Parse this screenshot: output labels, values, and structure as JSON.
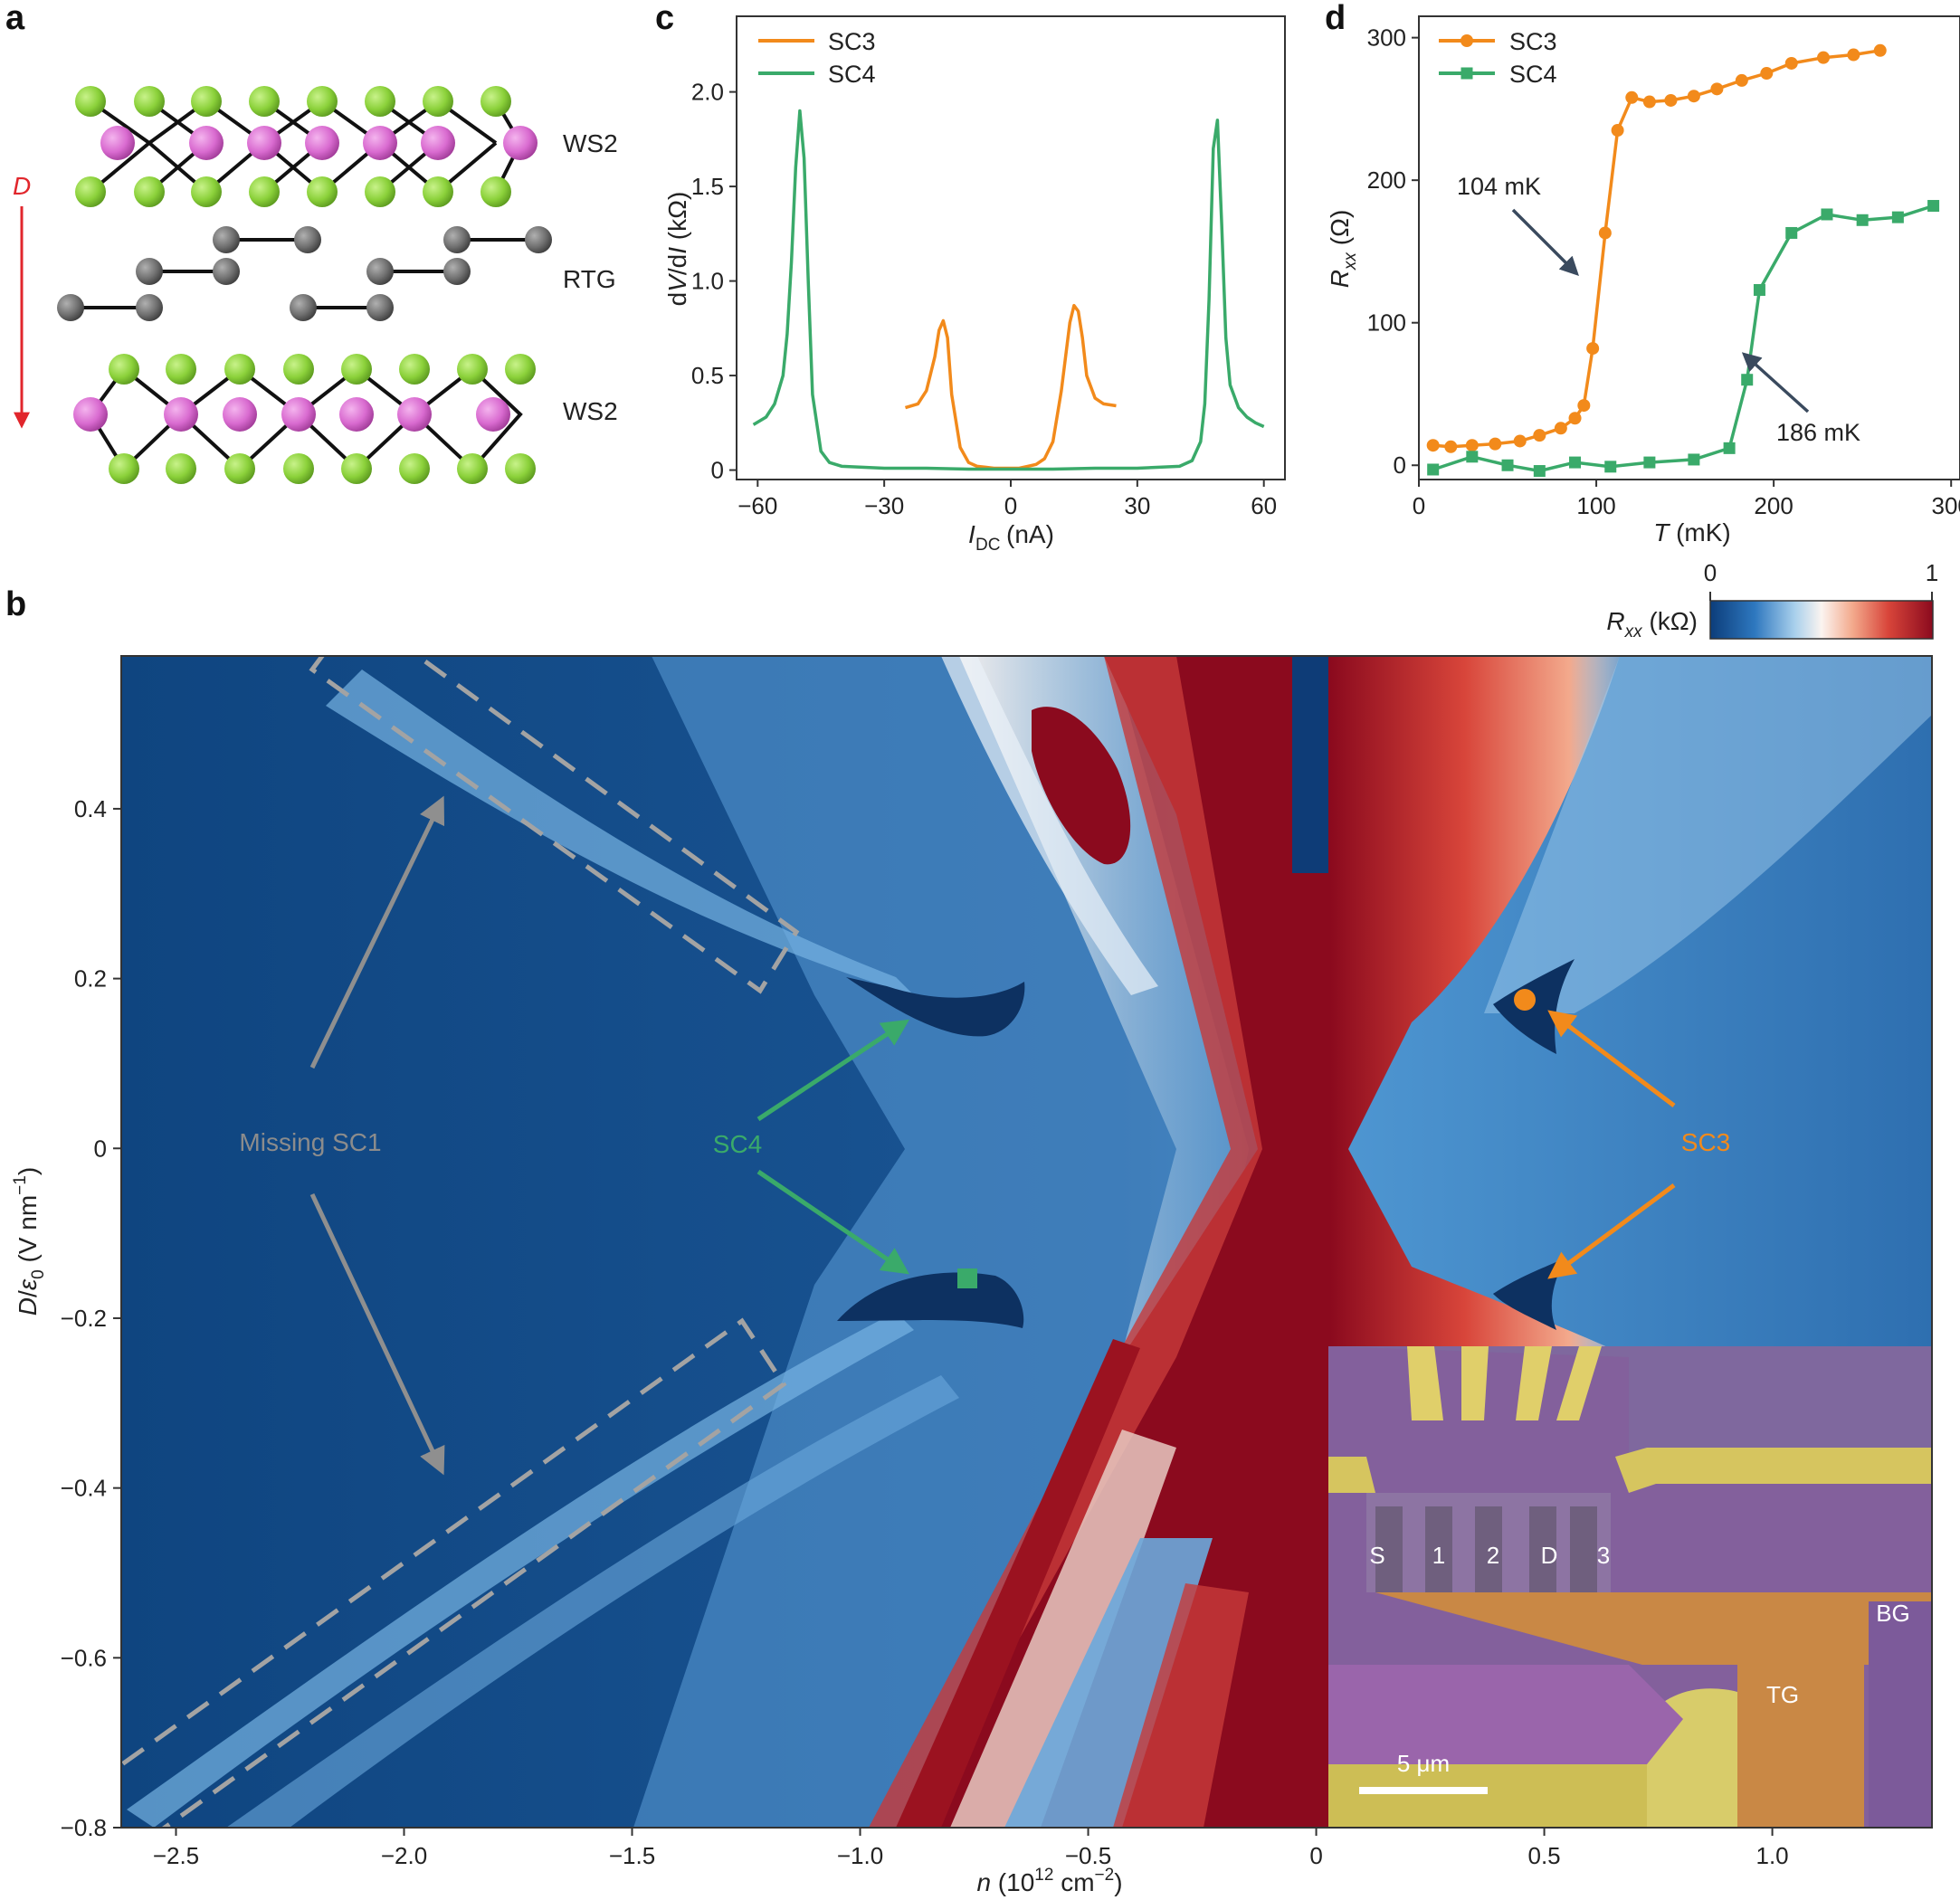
{
  "panels": {
    "a": {
      "letter": "a",
      "labels": {
        "top": "WS2",
        "middle": "RTG",
        "bottom": "WS2",
        "field": "D"
      },
      "colors": {
        "chalcogen": "#8bd13a",
        "metal": "#d96bd0",
        "carbon": "#707070",
        "field": "#e1262c"
      }
    },
    "b": {
      "letter": "b"
    },
    "c": {
      "letter": "c"
    },
    "d": {
      "letter": "d"
    }
  },
  "chart_data": [
    {
      "id": "c",
      "type": "line",
      "xlabel": "I_DC (nA)",
      "ylabel": "dV/dI (kΩ)",
      "xlim": [
        -65,
        65
      ],
      "ylim": [
        -0.05,
        2.4
      ],
      "xticks": [
        -60,
        -30,
        0,
        30,
        60
      ],
      "yticks": [
        0,
        0.5,
        1.0,
        1.5,
        2.0
      ],
      "legend_position": "top-left",
      "series": [
        {
          "name": "SC3",
          "color": "#f28a1b",
          "x": [
            -25,
            -22,
            -20,
            -18,
            -17,
            -16,
            -15,
            -14,
            -12,
            -10,
            -8,
            -6,
            -4,
            -2,
            0,
            2,
            4,
            6,
            8,
            10,
            12,
            14,
            15,
            16,
            17,
            18,
            20,
            22,
            25
          ],
          "y": [
            0.33,
            0.35,
            0.42,
            0.6,
            0.74,
            0.79,
            0.7,
            0.4,
            0.12,
            0.04,
            0.02,
            0.015,
            0.01,
            0.01,
            0.01,
            0.01,
            0.02,
            0.03,
            0.06,
            0.15,
            0.42,
            0.78,
            0.87,
            0.84,
            0.7,
            0.5,
            0.38,
            0.35,
            0.34
          ]
        },
        {
          "name": "SC4",
          "color": "#3aaa6a",
          "x": [
            -61,
            -58,
            -56,
            -54,
            -53,
            -52,
            -51,
            -50,
            -49,
            -48,
            -47,
            -45,
            -43,
            -40,
            -30,
            -20,
            -10,
            0,
            10,
            20,
            30,
            40,
            43,
            45,
            46,
            47,
            48,
            49,
            50,
            51,
            52,
            54,
            56,
            58,
            60
          ],
          "y": [
            0.24,
            0.28,
            0.35,
            0.5,
            0.72,
            1.1,
            1.6,
            1.9,
            1.65,
            1.0,
            0.4,
            0.1,
            0.04,
            0.02,
            0.01,
            0.01,
            0.005,
            0.005,
            0.005,
            0.01,
            0.01,
            0.02,
            0.05,
            0.15,
            0.35,
            0.9,
            1.7,
            1.85,
            1.3,
            0.7,
            0.45,
            0.33,
            0.28,
            0.25,
            0.23
          ]
        }
      ]
    },
    {
      "id": "d",
      "type": "line",
      "xlabel": "T (mK)",
      "ylabel": "Rxx (Ω)",
      "xlim": [
        0,
        305
      ],
      "ylim": [
        -10,
        315
      ],
      "xticks": [
        0,
        100,
        200,
        300
      ],
      "yticks": [
        0,
        100,
        200,
        300
      ],
      "legend_position": "top-left",
      "series": [
        {
          "name": "SC3",
          "color": "#f28a1b",
          "marker": "circle",
          "x": [
            8,
            18,
            30,
            43,
            57,
            68,
            80,
            88,
            93,
            98,
            105,
            112,
            120,
            130,
            142,
            155,
            168,
            182,
            196,
            210,
            228,
            245,
            260
          ],
          "y": [
            14,
            13,
            14,
            15,
            17,
            21,
            26,
            33,
            42,
            82,
            163,
            235,
            258,
            255,
            256,
            259,
            264,
            270,
            275,
            282,
            286,
            288,
            291
          ]
        },
        {
          "name": "SC4",
          "color": "#3aaa6a",
          "marker": "square",
          "x": [
            8,
            30,
            50,
            68,
            88,
            108,
            130,
            155,
            175,
            185,
            192,
            210,
            230,
            250,
            270,
            290
          ],
          "y": [
            -3,
            6,
            0,
            -4,
            2,
            -1,
            2,
            4,
            12,
            60,
            123,
            163,
            176,
            172,
            174,
            182
          ]
        }
      ],
      "annotations": [
        {
          "text": "104 mK",
          "color": "#3a4a5e"
        },
        {
          "text": "186 mK",
          "color": "#3a4a5e"
        }
      ]
    },
    {
      "id": "b",
      "type": "heatmap",
      "xlabel": "n (10^12 cm^-2)",
      "ylabel": "D/ε0 (V nm^-1)",
      "xlim": [
        -2.62,
        1.35
      ],
      "ylim": [
        -0.8,
        0.58
      ],
      "xticks": [
        -2.5,
        -2.0,
        -1.5,
        -1.0,
        -0.5,
        0,
        0.5,
        1.0
      ],
      "yticks": [
        -0.8,
        -0.6,
        -0.4,
        -0.2,
        0,
        0.2,
        0.4
      ],
      "colorbar": {
        "label": "Rxx (kΩ)",
        "min": 0,
        "max": 1,
        "colors": [
          "#0c3d7a",
          "#2e78bf",
          "#a9d0ec",
          "#fbf4f0",
          "#f3a98c",
          "#d8453a",
          "#8b0a1e"
        ]
      },
      "annotations": [
        {
          "text": "Missing SC1",
          "color": "#8c8c8c"
        },
        {
          "text": "SC4",
          "color": "#3aaa6a",
          "marker": "square",
          "marker_n": -0.79,
          "marker_D": -0.15
        },
        {
          "text": "SC3",
          "color": "#f28a1b",
          "marker": "circle",
          "marker_n": 0.43,
          "marker_D": 0.18
        }
      ],
      "inset": {
        "electrode_labels": [
          "S",
          "1",
          "2",
          "D",
          "3"
        ],
        "region_labels": [
          "BG",
          "TG"
        ],
        "scale_bar": "5 μm"
      }
    }
  ]
}
